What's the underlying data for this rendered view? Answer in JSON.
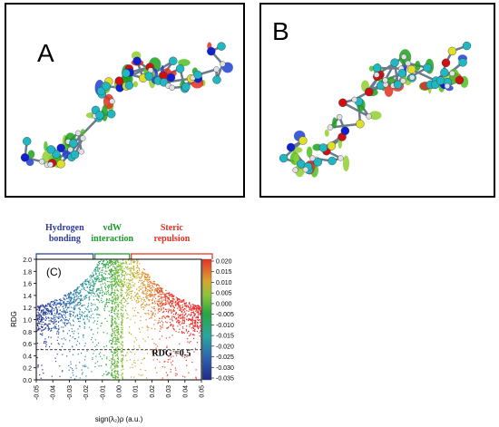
{
  "figure": {
    "panel_a_label": "A",
    "panel_b_label": "B"
  },
  "chart_data": {
    "type": "scatter",
    "panel_label": "(C)",
    "xlabel": "sign(λ₂)ρ (a.u.)",
    "ylabel": "RDG",
    "xlim": [
      -0.05,
      0.05
    ],
    "ylim": [
      0,
      2.0
    ],
    "x_ticks": [
      "-0.05",
      "-0.04",
      "-0.03",
      "-0.02",
      "-0.01",
      "0.00",
      "0.01",
      "0.02",
      "0.03",
      "0.04",
      "0.05"
    ],
    "y_ticks": [
      "0.0",
      "0.2",
      "0.4",
      "0.6",
      "0.8",
      "1.0",
      "1.2",
      "1.4",
      "1.6",
      "1.8",
      "2.0"
    ],
    "regions": [
      {
        "line1": "Hydrogen",
        "line2": "bonding",
        "color": "#2b3a9a",
        "range": [
          -0.05,
          -0.015
        ]
      },
      {
        "line1": "vdW",
        "line2": "interaction",
        "color": "#1a9a2a",
        "range": [
          -0.015,
          0.007
        ]
      },
      {
        "line1": "Steric",
        "line2": "repulsion",
        "color": "#e03020",
        "range": [
          0.007,
          0.05
        ]
      }
    ],
    "threshold": {
      "y": 0.5,
      "label": "RDG =0.5"
    },
    "colorbar": {
      "min": -0.035,
      "max": 0.02,
      "ticks": [
        "0.020",
        "0.015",
        "0.010",
        "0.005",
        "0.000",
        "-0.005",
        "-0.010",
        "-0.015",
        "-0.020",
        "-0.025",
        "-0.030",
        "-0.035"
      ]
    },
    "grid": false
  }
}
